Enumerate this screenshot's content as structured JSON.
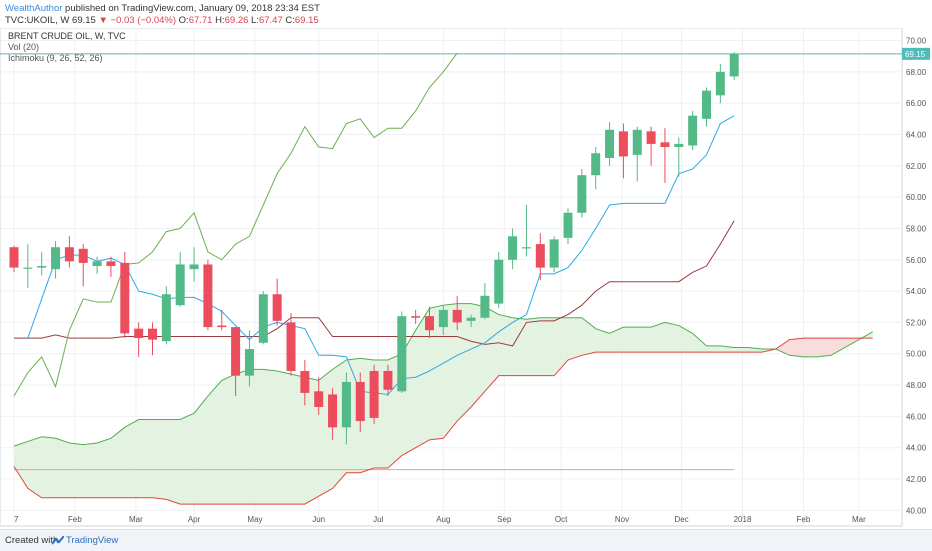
{
  "header": {
    "author": "WealthAuthor",
    "published_text": "published on TradingView.com, January 09, 2018 23:34 EST",
    "symbol": "TVC:UKOIL, W",
    "last": "69.15",
    "change": "−0.03 (−0.04%)",
    "open_label": "O:",
    "open": "67.71",
    "high_label": "H:",
    "high": "69.26",
    "low_label": "L:",
    "low": "67.47",
    "close_label": "C:",
    "close": "69.15"
  },
  "legend": {
    "title": "BRENT CRUDE OIL, W, TVC",
    "vol": "Vol (20)",
    "ichimoku": "Ichimoku (9, 26, 52, 26)"
  },
  "footer": {
    "created_with": "Created with",
    "brand": "TradingView"
  },
  "colors": {
    "up": "#53b987",
    "down": "#eb4d5c",
    "tenkan": "#2ea8e8",
    "kijun": "#9b3b3b",
    "chikou": "#6ab04c",
    "span_a": "#4caf50",
    "span_b": "#e0463c",
    "cloud_bull": "#dff0dc",
    "cloud_bear": "#f8d6d6",
    "price_line": "#4fbcb7"
  },
  "chart_data": {
    "type": "candlestick",
    "ylim": [
      39.0,
      70.8
    ],
    "y_ticks": [
      "40.00",
      "42.00",
      "44.00",
      "46.00",
      "48.00",
      "50.00",
      "52.00",
      "54.00",
      "56.00",
      "58.00",
      "60.00",
      "62.00",
      "64.00",
      "66.00",
      "68.00",
      "70.00"
    ],
    "x_tick_labels": [
      "7",
      "Feb",
      "Mar",
      "Apr",
      "May",
      "Jun",
      "Jul",
      "Aug",
      "Sep",
      "Oct",
      "Nov",
      "Dec",
      "2018",
      "Feb",
      "Mar"
    ],
    "x_tick_weeks": [
      0,
      4.4,
      8.8,
      13,
      17.4,
      22,
      26.3,
      31,
      35.4,
      39.5,
      43.9,
      48.2,
      52.6,
      57,
      61
    ],
    "last_price_label": "69.15",
    "last_price": 69.15,
    "candles": [
      [
        0,
        56.8,
        55.5,
        56.9,
        55.2
      ],
      [
        1,
        55.5,
        55.5,
        57.0,
        54.2
      ],
      [
        2,
        55.5,
        55.6,
        56.5,
        55.0
      ],
      [
        3,
        55.4,
        56.8,
        57.2,
        54.8
      ],
      [
        4,
        56.8,
        55.9,
        57.5,
        55.5
      ],
      [
        5,
        56.7,
        55.8,
        57.0,
        54.3
      ],
      [
        6,
        55.6,
        55.9,
        56.2,
        55.1
      ],
      [
        7,
        55.9,
        55.6,
        56.2,
        54.9
      ],
      [
        8,
        55.8,
        51.3,
        56.5,
        51.0
      ],
      [
        9,
        51.6,
        51.0,
        52.0,
        49.8
      ],
      [
        10,
        51.6,
        50.9,
        52.0,
        49.9
      ],
      [
        11,
        50.8,
        53.8,
        54.3,
        50.6
      ],
      [
        12,
        53.1,
        55.7,
        56.5,
        53.0
      ],
      [
        13,
        55.4,
        55.7,
        56.8,
        54.6
      ],
      [
        14,
        55.7,
        51.7,
        56.0,
        51.5
      ],
      [
        15,
        51.8,
        51.7,
        52.8,
        51.5
      ],
      [
        16,
        51.7,
        48.6,
        51.7,
        47.3
      ],
      [
        17,
        48.6,
        50.3,
        51.5,
        47.9
      ],
      [
        18,
        50.7,
        53.8,
        54.0,
        50.6
      ],
      [
        19,
        53.8,
        52.1,
        54.8,
        51.8
      ],
      [
        20,
        52.0,
        48.9,
        52.6,
        48.6
      ],
      [
        21,
        48.9,
        47.5,
        49.6,
        46.7
      ],
      [
        22,
        47.6,
        46.6,
        48.5,
        46.1
      ],
      [
        23,
        47.4,
        45.3,
        47.8,
        44.5
      ],
      [
        24,
        45.3,
        48.2,
        48.8,
        44.2
      ],
      [
        25,
        48.2,
        45.7,
        48.8,
        45.0
      ],
      [
        26,
        48.9,
        45.9,
        49.3,
        45.5
      ],
      [
        27,
        48.9,
        47.7,
        49.3,
        47.3
      ],
      [
        28,
        47.6,
        52.4,
        52.7,
        47.5
      ],
      [
        29,
        52.4,
        52.3,
        52.8,
        51.9
      ],
      [
        30,
        52.4,
        51.5,
        53.0,
        51.0
      ],
      [
        31,
        51.7,
        52.8,
        53.1,
        51.2
      ],
      [
        32,
        52.8,
        52.0,
        53.7,
        51.5
      ],
      [
        33,
        52.1,
        52.3,
        52.5,
        51.7
      ],
      [
        34,
        52.3,
        53.7,
        54.5,
        52.2
      ],
      [
        35,
        53.2,
        56.0,
        56.5,
        52.9
      ],
      [
        36,
        56.0,
        57.5,
        58.0,
        55.4
      ],
      [
        37,
        56.8,
        56.8,
        59.5,
        56.2
      ],
      [
        38,
        57.0,
        55.5,
        57.7,
        54.7
      ],
      [
        39,
        55.5,
        57.3,
        57.5,
        55.2
      ],
      [
        40,
        57.4,
        59.0,
        59.3,
        57.0
      ],
      [
        41,
        59.0,
        61.4,
        61.8,
        58.7
      ],
      [
        42,
        61.4,
        62.8,
        63.2,
        60.5
      ],
      [
        43,
        62.5,
        64.3,
        64.8,
        62.0
      ],
      [
        44,
        64.2,
        62.6,
        64.7,
        61.2
      ],
      [
        45,
        62.7,
        64.3,
        64.5,
        61.0
      ],
      [
        46,
        64.2,
        63.4,
        64.5,
        62.0
      ],
      [
        47,
        63.5,
        63.2,
        64.4,
        60.9
      ],
      [
        48,
        63.2,
        63.4,
        63.8,
        61.3
      ],
      [
        49,
        63.3,
        65.2,
        65.5,
        63.0
      ],
      [
        50,
        65.0,
        66.8,
        67.0,
        64.5
      ],
      [
        51,
        66.5,
        68.0,
        68.5,
        66.0
      ],
      [
        52,
        67.71,
        69.15,
        69.26,
        67.47
      ]
    ],
    "tenkan": [
      [
        1,
        51.0
      ],
      [
        2,
        53.5
      ],
      [
        3,
        56.0
      ],
      [
        4,
        56.3
      ],
      [
        5,
        56.3
      ],
      [
        6,
        55.9
      ],
      [
        7,
        56.1
      ],
      [
        8,
        55.7
      ],
      [
        9,
        54.0
      ],
      [
        10,
        53.8
      ],
      [
        11,
        53.5
      ],
      [
        12,
        53.6
      ],
      [
        13,
        53.6
      ],
      [
        14,
        53.2
      ],
      [
        15,
        52.7
      ],
      [
        16,
        51.8
      ],
      [
        17,
        50.9
      ],
      [
        18,
        51.7
      ],
      [
        19,
        52.0
      ],
      [
        20,
        51.8
      ],
      [
        21,
        51.6
      ],
      [
        22,
        49.9
      ],
      [
        23,
        49.9
      ],
      [
        24,
        49.8
      ],
      [
        25,
        47.6
      ],
      [
        26,
        47.5
      ],
      [
        27,
        47.4
      ],
      [
        28,
        48.4
      ],
      [
        29,
        48.5
      ],
      [
        30,
        48.9
      ],
      [
        31,
        49.4
      ],
      [
        32,
        49.9
      ],
      [
        33,
        50.3
      ],
      [
        34,
        50.7
      ],
      [
        35,
        51.4
      ],
      [
        36,
        52.0
      ],
      [
        37,
        52.5
      ],
      [
        38,
        55.1
      ],
      [
        39,
        55.1
      ],
      [
        40,
        55.5
      ],
      [
        41,
        56.6
      ],
      [
        42,
        58.0
      ],
      [
        43,
        59.5
      ],
      [
        44,
        59.6
      ],
      [
        45,
        59.6
      ],
      [
        46,
        59.6
      ],
      [
        47,
        59.6
      ],
      [
        48,
        61.5
      ],
      [
        49,
        61.8
      ],
      [
        50,
        62.7
      ],
      [
        51,
        64.7
      ],
      [
        52,
        65.2
      ]
    ],
    "kijun": [
      [
        0,
        51.0
      ],
      [
        1,
        51.0
      ],
      [
        2,
        51.0
      ],
      [
        3,
        51.2
      ],
      [
        4,
        51.0
      ],
      [
        5,
        51.0
      ],
      [
        6,
        51.0
      ],
      [
        7,
        51.0
      ],
      [
        8,
        51.1
      ],
      [
        9,
        51.1
      ],
      [
        10,
        51.1
      ],
      [
        11,
        51.1
      ],
      [
        12,
        51.1
      ],
      [
        13,
        51.1
      ],
      [
        14,
        51.1
      ],
      [
        15,
        51.1
      ],
      [
        16,
        51.1
      ],
      [
        17,
        51.1
      ],
      [
        18,
        51.1
      ],
      [
        19,
        51.6
      ],
      [
        20,
        52.3
      ],
      [
        21,
        52.3
      ],
      [
        22,
        52.3
      ],
      [
        23,
        51.1
      ],
      [
        24,
        51.1
      ],
      [
        25,
        51.1
      ],
      [
        26,
        51.1
      ],
      [
        27,
        51.1
      ],
      [
        28,
        51.1
      ],
      [
        29,
        51.1
      ],
      [
        30,
        51.1
      ],
      [
        31,
        51.1
      ],
      [
        32,
        51.1
      ],
      [
        33,
        50.8
      ],
      [
        34,
        50.6
      ],
      [
        35,
        50.7
      ],
      [
        36,
        50.5
      ],
      [
        37,
        52.0
      ],
      [
        38,
        52.1
      ],
      [
        39,
        52.1
      ],
      [
        40,
        52.5
      ],
      [
        41,
        53.1
      ],
      [
        42,
        54.0
      ],
      [
        43,
        54.6
      ],
      [
        44,
        54.6
      ],
      [
        45,
        54.6
      ],
      [
        46,
        54.6
      ],
      [
        47,
        54.6
      ],
      [
        48,
        54.6
      ],
      [
        49,
        55.2
      ],
      [
        50,
        55.6
      ],
      [
        51,
        57.0
      ],
      [
        52,
        58.5
      ]
    ],
    "chikou": [
      [
        0,
        47.3
      ],
      [
        1,
        48.8
      ],
      [
        2,
        49.8
      ],
      [
        3,
        47.9
      ],
      [
        4,
        51.5
      ],
      [
        5,
        53.5
      ],
      [
        6,
        53.3
      ],
      [
        7,
        53.3
      ],
      [
        8,
        55.7
      ],
      [
        9,
        55.8
      ],
      [
        10,
        56.5
      ],
      [
        11,
        57.8
      ],
      [
        12,
        58.0
      ],
      [
        13,
        59.0
      ],
      [
        14,
        56.5
      ],
      [
        15,
        56.0
      ],
      [
        16,
        57.0
      ],
      [
        17,
        57.5
      ],
      [
        18,
        59.5
      ],
      [
        19,
        61.5
      ],
      [
        20,
        62.8
      ],
      [
        21,
        64.5
      ],
      [
        22,
        63.2
      ],
      [
        23,
        63.1
      ],
      [
        24,
        64.7
      ],
      [
        25,
        65.0
      ],
      [
        26,
        63.8
      ],
      [
        27,
        64.4
      ],
      [
        28,
        64.4
      ],
      [
        29,
        65.5
      ],
      [
        30,
        67.0
      ],
      [
        31,
        68.0
      ],
      [
        32,
        69.2
      ]
    ],
    "span_a": [
      [
        0,
        44.1
      ],
      [
        1,
        44.4
      ],
      [
        2,
        44.7
      ],
      [
        3,
        44.6
      ],
      [
        4,
        44.3
      ],
      [
        5,
        44.2
      ],
      [
        6,
        44.3
      ],
      [
        7,
        44.6
      ],
      [
        8,
        45.3
      ],
      [
        9,
        45.8
      ],
      [
        10,
        45.8
      ],
      [
        11,
        45.8
      ],
      [
        12,
        45.8
      ],
      [
        13,
        46.2
      ],
      [
        14,
        47.3
      ],
      [
        15,
        48.3
      ],
      [
        16,
        48.7
      ],
      [
        17,
        49.0
      ],
      [
        18,
        49.0
      ],
      [
        19,
        48.9
      ],
      [
        20,
        48.7
      ],
      [
        21,
        48.5
      ],
      [
        22,
        48.3
      ],
      [
        23,
        49.0
      ],
      [
        24,
        49.6
      ],
      [
        25,
        49.7
      ],
      [
        26,
        49.6
      ],
      [
        27,
        49.6
      ],
      [
        28,
        50.0
      ],
      [
        29,
        51.5
      ],
      [
        30,
        52.9
      ],
      [
        31,
        53.1
      ],
      [
        32,
        53.2
      ],
      [
        33,
        53.2
      ],
      [
        34,
        53.0
      ],
      [
        35,
        52.5
      ],
      [
        36,
        52.3
      ],
      [
        37,
        52.2
      ],
      [
        38,
        52.3
      ],
      [
        39,
        52.3
      ],
      [
        40,
        52.3
      ],
      [
        41,
        52.3
      ],
      [
        42,
        51.6
      ],
      [
        43,
        51.3
      ],
      [
        44,
        51.7
      ],
      [
        45,
        51.7
      ],
      [
        46,
        51.7
      ],
      [
        47,
        52.0
      ],
      [
        48,
        51.8
      ],
      [
        49,
        51.3
      ],
      [
        50,
        50.5
      ],
      [
        51,
        50.5
      ],
      [
        52,
        50.4
      ],
      [
        53,
        50.4
      ],
      [
        54,
        50.3
      ],
      [
        55,
        50.3
      ],
      [
        56,
        49.9
      ],
      [
        57,
        49.8
      ],
      [
        58,
        49.8
      ],
      [
        59,
        49.9
      ],
      [
        60,
        50.4
      ],
      [
        61,
        50.9
      ],
      [
        62,
        51.4
      ]
    ],
    "span_b": [
      [
        0,
        42.8
      ],
      [
        1,
        41.4
      ],
      [
        2,
        40.8
      ],
      [
        3,
        40.8
      ],
      [
        4,
        40.8
      ],
      [
        5,
        40.8
      ],
      [
        6,
        40.8
      ],
      [
        7,
        40.8
      ],
      [
        8,
        40.8
      ],
      [
        9,
        40.8
      ],
      [
        10,
        40.8
      ],
      [
        11,
        40.7
      ],
      [
        12,
        40.4
      ],
      [
        13,
        40.4
      ],
      [
        14,
        40.4
      ],
      [
        15,
        40.4
      ],
      [
        16,
        40.4
      ],
      [
        17,
        40.4
      ],
      [
        18,
        40.4
      ],
      [
        19,
        40.4
      ],
      [
        20,
        40.4
      ],
      [
        21,
        40.4
      ],
      [
        22,
        40.9
      ],
      [
        23,
        41.4
      ],
      [
        24,
        42.4
      ],
      [
        25,
        42.4
      ],
      [
        26,
        42.7
      ],
      [
        27,
        42.7
      ],
      [
        28,
        43.5
      ],
      [
        29,
        44.0
      ],
      [
        30,
        44.5
      ],
      [
        31,
        44.6
      ],
      [
        32,
        45.7
      ],
      [
        33,
        46.6
      ],
      [
        34,
        47.6
      ],
      [
        35,
        48.6
      ],
      [
        36,
        48.6
      ],
      [
        37,
        48.6
      ],
      [
        38,
        48.6
      ],
      [
        39,
        48.6
      ],
      [
        40,
        49.6
      ],
      [
        41,
        49.9
      ],
      [
        42,
        50.1
      ],
      [
        43,
        50.1
      ],
      [
        44,
        50.1
      ],
      [
        45,
        50.1
      ],
      [
        46,
        50.1
      ],
      [
        47,
        50.1
      ],
      [
        48,
        50.1
      ],
      [
        49,
        50.1
      ],
      [
        50,
        50.1
      ],
      [
        51,
        50.1
      ],
      [
        52,
        50.1
      ],
      [
        53,
        50.1
      ],
      [
        54,
        50.1
      ],
      [
        55,
        50.3
      ],
      [
        56,
        50.9
      ],
      [
        57,
        51.0
      ],
      [
        58,
        51.0
      ],
      [
        59,
        51.0
      ],
      [
        60,
        51.0
      ],
      [
        61,
        51.0
      ],
      [
        62,
        51.0
      ]
    ],
    "lagging_flat": [
      [
        0,
        42.6
      ],
      [
        52,
        42.6
      ]
    ]
  }
}
